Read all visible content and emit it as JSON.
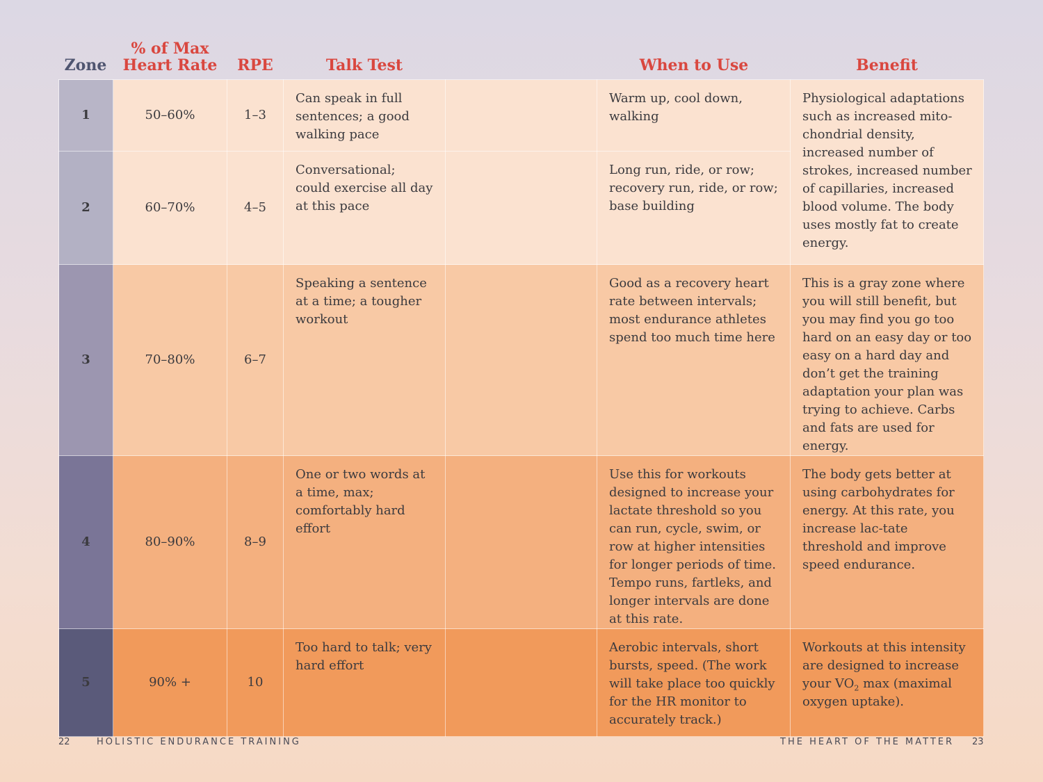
{
  "headers": {
    "zone": "Zone",
    "max_hr_line1": "% of Max",
    "max_hr_line2": "Heart Rate",
    "rpe": "RPE",
    "talk_test": "Talk Test",
    "when_to_use": "When to Use",
    "benefit": "Benefit"
  },
  "rows": [
    {
      "zone": "1",
      "pct": "50–60%",
      "rpe": "1–3",
      "talk": "Can speak in full sentences; a good walking pace",
      "when": "Warm up, cool down, walking"
    },
    {
      "zone": "2",
      "pct": "60–70%",
      "rpe": "4–5",
      "talk": "Conversational; could exercise all day at this pace",
      "when": "Long run, ride, or row; recovery run, ride, or row; base building"
    },
    {
      "zone": "3",
      "pct": "70–80%",
      "rpe": "6–7",
      "talk": "Speaking a sentence at a time; a tougher workout",
      "when": "Good as a recovery heart rate between intervals; most endurance athletes spend too much time here",
      "benefit": "This is a gray zone where you will still benefit, but you may find you go too hard on an easy day or too easy on a hard day and don’t get the training adaptation your plan was trying to achieve. Carbs and fats are used for energy."
    },
    {
      "zone": "4",
      "pct": "80–90%",
      "rpe": "8–9",
      "talk": "One or two words at a time, max; comfortably hard effort",
      "when": "Use this for workouts designed to increase your lactate threshold so you can run, cycle, swim, or row at higher intensities for longer periods of time. Tempo runs, fartleks, and longer intervals are done at this rate.",
      "benefit": "The body gets better at using carbohydrates for energy. At this rate, you increase lac-tate threshold and improve speed endurance."
    },
    {
      "zone": "5",
      "pct": "90% +",
      "rpe": "10",
      "talk": "Too hard to talk; very hard effort",
      "when": "Aerobic intervals, short bursts, speed. (The work will take place too quickly for the HR monitor to accurately track.)",
      "benefit_before": "Workouts at this intensity are designed to increase your VO",
      "benefit_sub": "2",
      "benefit_after": " max (maximal oxygen uptake)."
    }
  ],
  "benefit_zone_1_2": "Physiological adaptations such as increased mito-chondrial density, increased number of strokes, increased number of capillaries, increased blood volume. The body uses mostly fat to create energy.",
  "footer": {
    "left_page": "22",
    "left_title": "HOLISTIC ENDURANCE TRAINING",
    "right_title": "THE HEART OF THE MATTER",
    "right_page": "23"
  }
}
